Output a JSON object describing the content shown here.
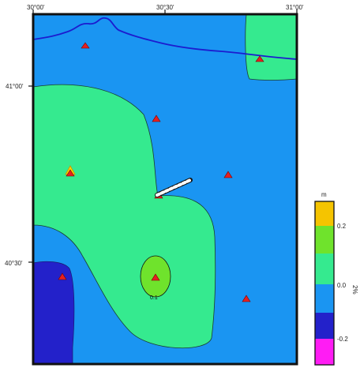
{
  "map": {
    "longitude_ticks": [
      "30°00'",
      "30°30'",
      "31°00'"
    ],
    "latitude_ticks": [
      "41°00'",
      "40°30'"
    ],
    "contour_labels": [
      "0.1"
    ],
    "stations_count_visible": 11,
    "fault_segment": "red-white dashed rupture segment"
  },
  "colorbar": {
    "unit": "m",
    "ticks": [
      "0.2",
      "0.0",
      "-0.2"
    ],
    "side_label": "2%",
    "colors": {
      "gt_0_2": "#f5c400",
      "0_1_to_0_2": "#6fe32c",
      "0_0_to_0_1": "#35ea8f",
      "-0_1_to_0_0": "#1a95f2",
      "-0_2_to_-0_1": "#2321ca",
      "lt_-0_2": "#ff1cf4"
    }
  },
  "colors": {
    "frame": "#111111",
    "coast": "#1c1ccf",
    "station_marker": "#e62020"
  }
}
